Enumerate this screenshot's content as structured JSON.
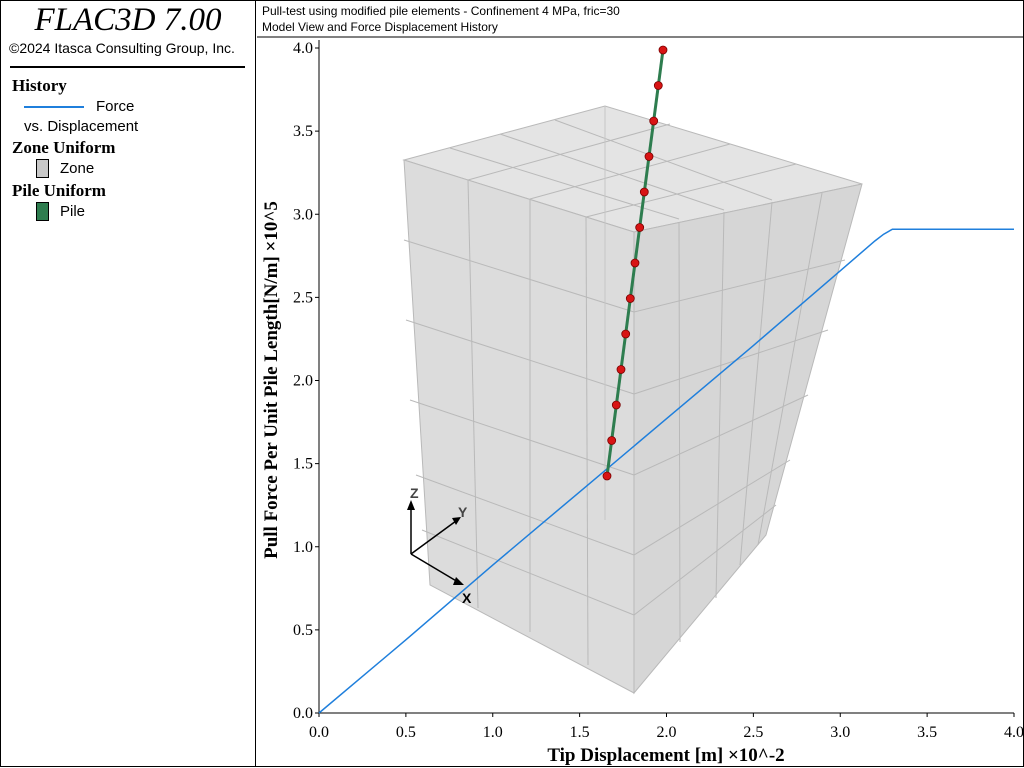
{
  "app": {
    "title": "FLAC3D 7.00",
    "copyright": "©2024 Itasca Consulting Group, Inc."
  },
  "header": {
    "line1": "Pull-test using modified pile elements - Confinement 4 MPa, fric=30",
    "line2": "Model View and Force Displacement History"
  },
  "legend": {
    "history_heading": "History",
    "history_item_name": "Force",
    "history_item_sub": "vs. Displacement",
    "zone_heading": "Zone Uniform",
    "zone_item": "Zone",
    "pile_heading": "Pile Uniform",
    "pile_item": "Pile"
  },
  "colors": {
    "history_line": "#1f7fdc",
    "zone": "#c8c8c8",
    "pile": "#2e7d4f",
    "pile_node": "#d81414"
  },
  "axes_triad": {
    "z": "Z",
    "y": "Y",
    "x": "X"
  },
  "chart_data": {
    "type": "line",
    "xlabel": "Tip Displacement [m] ×10^-2",
    "ylabel": "Pull Force Per Unit Pile Length[N/m] ×10^5",
    "xlim": [
      0.0,
      4.0
    ],
    "ylim": [
      0.0,
      4.0
    ],
    "x_ticks": [
      "0.0",
      "0.5",
      "1.0",
      "1.5",
      "2.0",
      "2.5",
      "3.0",
      "3.5",
      "4.0"
    ],
    "y_ticks": [
      "0.0",
      "0.5",
      "1.0",
      "1.5",
      "2.0",
      "2.5",
      "3.0",
      "3.5",
      "4.0"
    ],
    "series": [
      {
        "name": "Force",
        "x": [
          0.0,
          0.5,
          1.0,
          1.5,
          2.0,
          2.5,
          3.0,
          3.2,
          3.25,
          3.3,
          3.5,
          4.0
        ],
        "y": [
          0.0,
          0.44,
          0.89,
          1.33,
          1.77,
          2.21,
          2.66,
          2.84,
          2.88,
          2.91,
          2.91,
          2.91
        ]
      }
    ],
    "grid": false
  }
}
